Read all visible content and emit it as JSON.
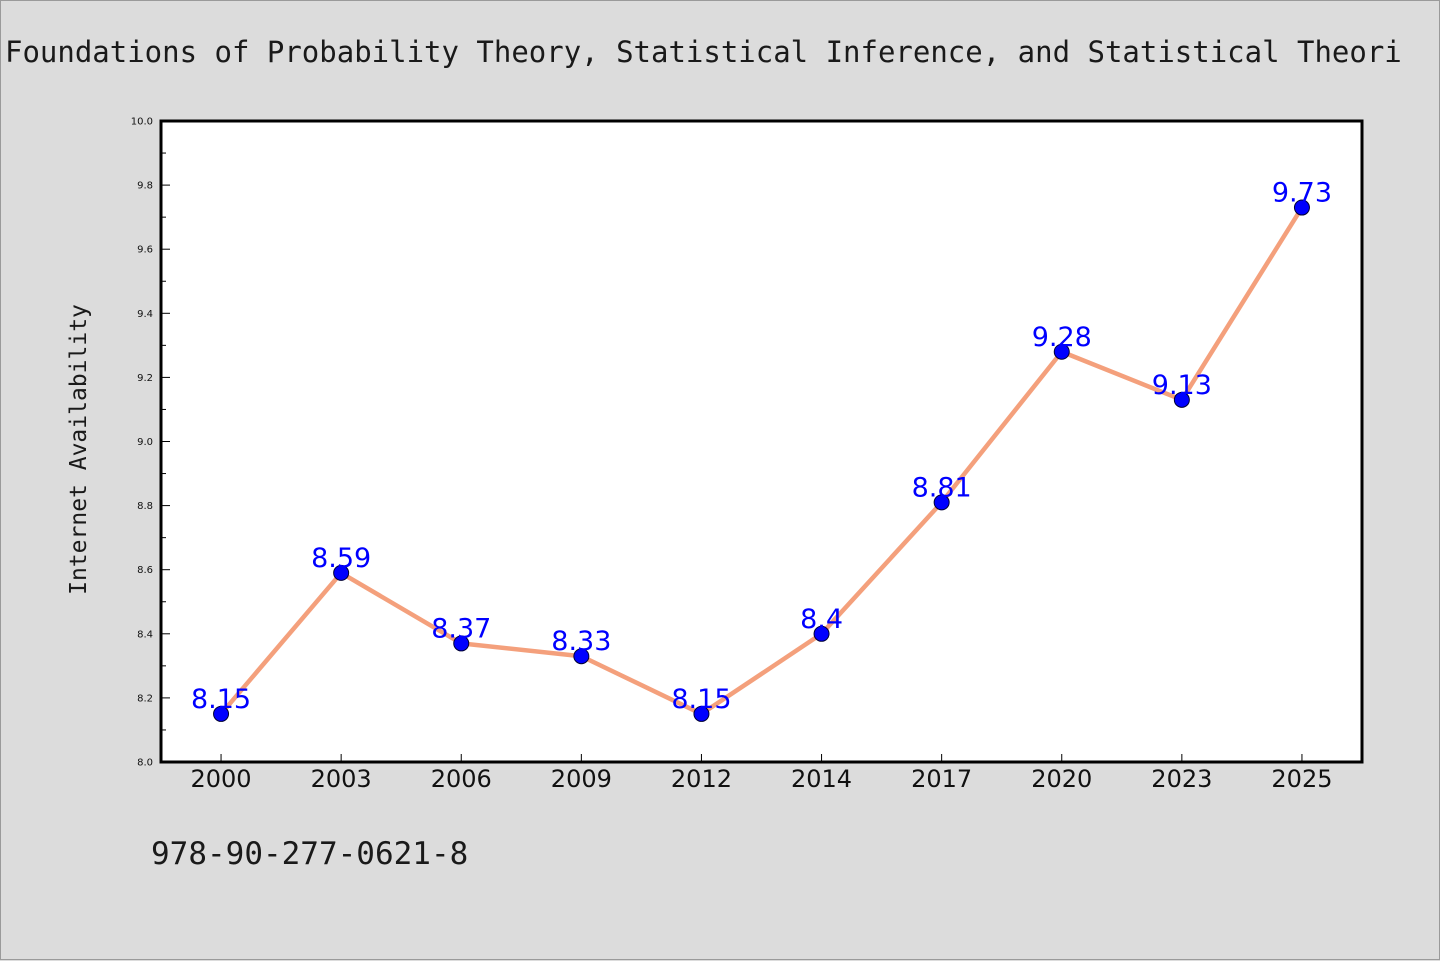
{
  "chart_data": {
    "type": "line",
    "title": "Foundations of Probability Theory, Statistical Inference, and Statistical Theori",
    "subtitle": "978-90-277-0621-8",
    "xlabel": "",
    "ylabel": "Internet Availability",
    "categories": [
      "2000",
      "2003",
      "2006",
      "2009",
      "2012",
      "2014",
      "2017",
      "2020",
      "2023",
      "2025"
    ],
    "values": [
      8.15,
      8.59,
      8.37,
      8.33,
      8.15,
      8.4,
      8.81,
      9.28,
      9.13,
      9.73
    ],
    "value_labels": [
      "8.15",
      "8.59",
      "8.37",
      "8.33",
      "8.15",
      "8.4",
      "8.81",
      "9.28",
      "9.13",
      "9.73"
    ],
    "yticks": [
      "8.0",
      "8.2",
      "8.4",
      "8.6",
      "8.8",
      "9.0",
      "9.2",
      "9.4",
      "9.6",
      "9.8",
      "10.0"
    ],
    "ylim": [
      8.0,
      10.0
    ],
    "grid": false,
    "line_color": "#f4a07c",
    "marker_color": "#0000ff",
    "label_color": "#0000ff",
    "plot_background": "#ffffff",
    "page_background": "#dcdcdc"
  }
}
